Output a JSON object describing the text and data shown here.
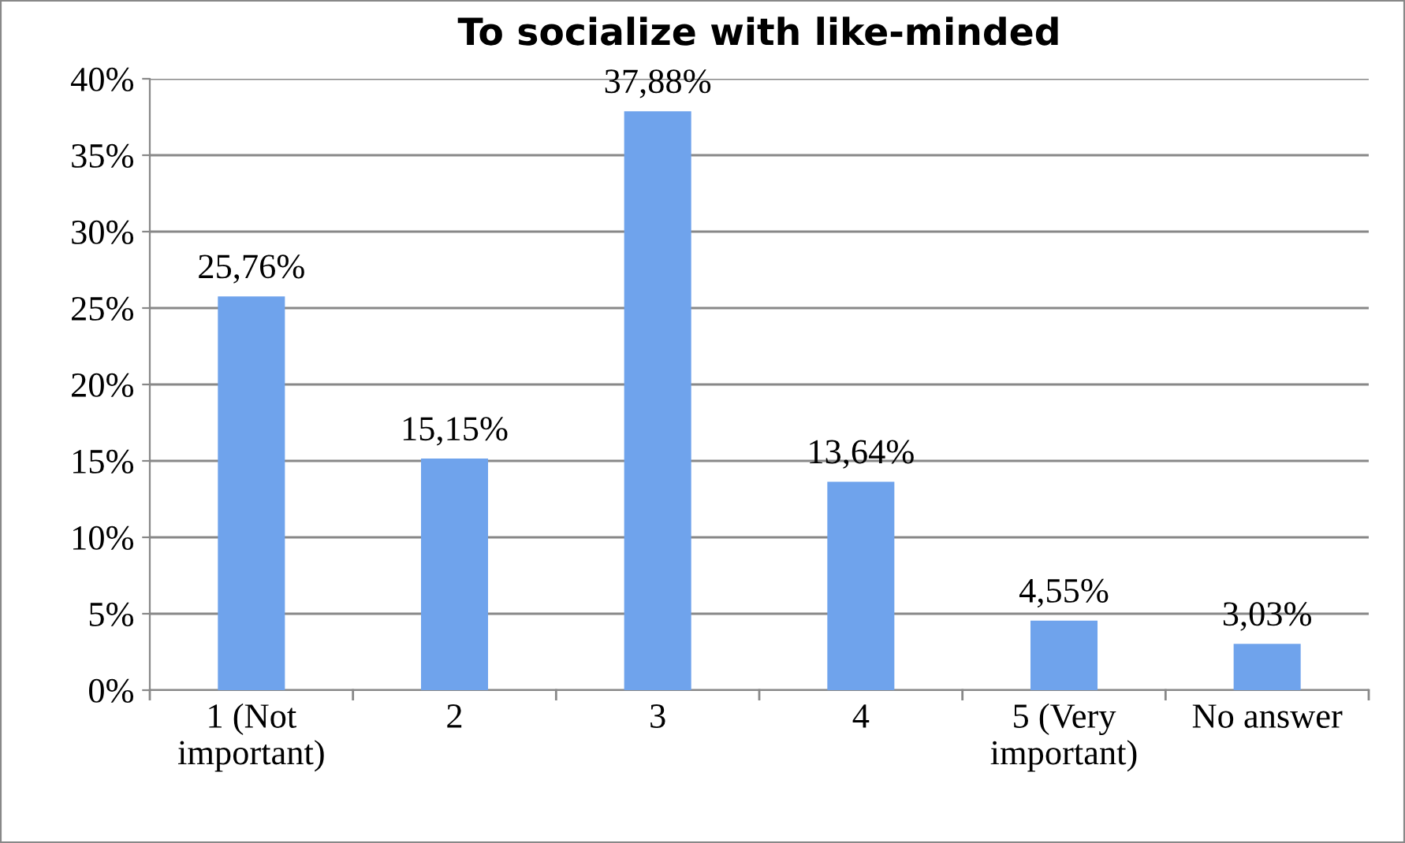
{
  "chart_data": {
    "type": "bar",
    "title": "To socialize with like-minded",
    "categories": [
      "1 (Not\nimportant)",
      "2",
      "3",
      "4",
      "5 (Very\nimportant)",
      "No answer"
    ],
    "values": [
      25.76,
      15.15,
      37.88,
      13.64,
      4.55,
      3.03
    ],
    "value_labels": [
      "25,76%",
      "15,15%",
      "37,88%",
      "13,64%",
      "4,55%",
      "3,03%"
    ],
    "color": "#6fa3ec",
    "ylim": [
      0,
      40
    ],
    "yticks": [
      {
        "value": 0,
        "label": "0%"
      },
      {
        "value": 5,
        "label": "5%"
      },
      {
        "value": 10,
        "label": "10%"
      },
      {
        "value": 15,
        "label": "15%"
      },
      {
        "value": 20,
        "label": "20%"
      },
      {
        "value": 25,
        "label": "25%"
      },
      {
        "value": 30,
        "label": "30%"
      },
      {
        "value": 35,
        "label": "35%"
      },
      {
        "value": 40,
        "label": "40%"
      }
    ],
    "grid": "y",
    "legend": false
  }
}
